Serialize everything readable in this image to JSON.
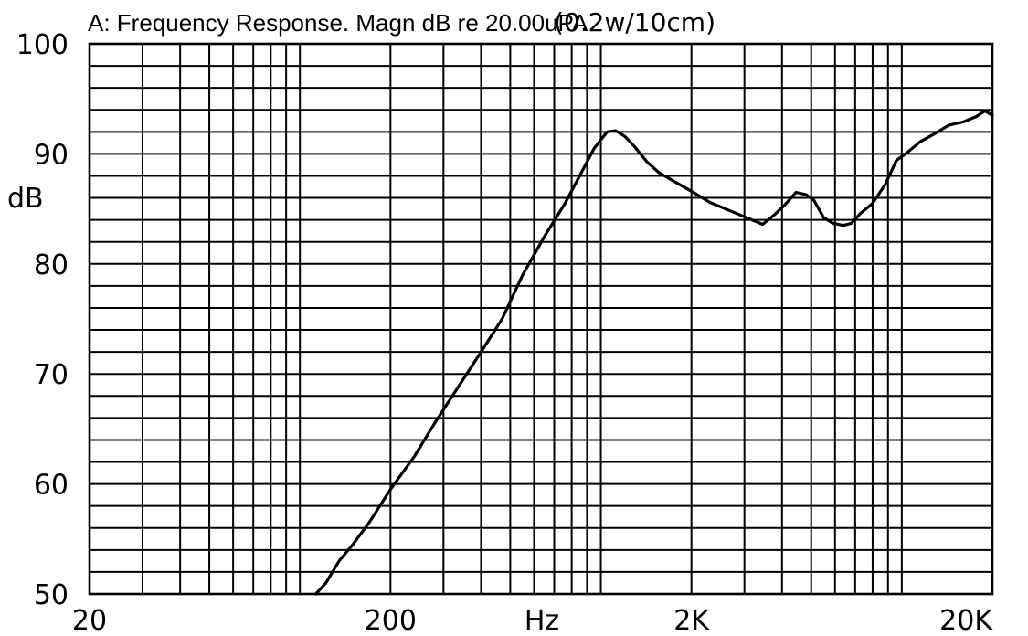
{
  "chart_data": {
    "type": "line",
    "title": "A: Frequency Response. Magn dB re 20.00uPA",
    "subtitle": "(0.2w/10cm)",
    "xlabel": "Hz",
    "ylabel": "dB",
    "x_scale": "log",
    "xlim": [
      20,
      20000
    ],
    "ylim": [
      50,
      100
    ],
    "grid": true,
    "x_tick_labels": [
      "20",
      "200",
      "2K",
      "20K"
    ],
    "x_tick_values": [
      20,
      200,
      2000,
      20000
    ],
    "y_tick_labels": [
      "50",
      "60",
      "70",
      "80",
      "90",
      "100"
    ],
    "y_tick_values": [
      50,
      60,
      70,
      80,
      90,
      100
    ],
    "series": [
      {
        "values": [
          [
            113,
            50
          ],
          [
            122,
            51
          ],
          [
            135,
            53
          ],
          [
            150,
            54.5
          ],
          [
            170,
            56.5
          ],
          [
            200,
            59.5
          ],
          [
            240,
            62.5
          ],
          [
            280,
            65.5
          ],
          [
            330,
            68.5
          ],
          [
            400,
            72
          ],
          [
            470,
            75
          ],
          [
            550,
            79
          ],
          [
            650,
            82.5
          ],
          [
            760,
            85.5
          ],
          [
            850,
            88
          ],
          [
            950,
            90.5
          ],
          [
            1050,
            92
          ],
          [
            1120,
            92.1
          ],
          [
            1200,
            91.6
          ],
          [
            1300,
            90.6
          ],
          [
            1420,
            89.3
          ],
          [
            1560,
            88.3
          ],
          [
            1750,
            87.5
          ],
          [
            2000,
            86.6
          ],
          [
            2300,
            85.6
          ],
          [
            2650,
            84.9
          ],
          [
            3050,
            84.2
          ],
          [
            3450,
            83.6
          ],
          [
            3750,
            84.4
          ],
          [
            4100,
            85.4
          ],
          [
            4450,
            86.5
          ],
          [
            4800,
            86.3
          ],
          [
            5100,
            85.8
          ],
          [
            5500,
            84.2
          ],
          [
            5900,
            83.7
          ],
          [
            6400,
            83.5
          ],
          [
            6800,
            83.7
          ],
          [
            7300,
            84.6
          ],
          [
            8000,
            85.5
          ],
          [
            8800,
            87.2
          ],
          [
            9600,
            89.4
          ],
          [
            10400,
            90.1
          ],
          [
            11500,
            91.1
          ],
          [
            12800,
            91.8
          ],
          [
            14300,
            92.6
          ],
          [
            16000,
            92.9
          ],
          [
            17700,
            93.4
          ],
          [
            18900,
            93.9
          ],
          [
            20000,
            93.5
          ]
        ]
      }
    ],
    "line_color": "#000000"
  }
}
